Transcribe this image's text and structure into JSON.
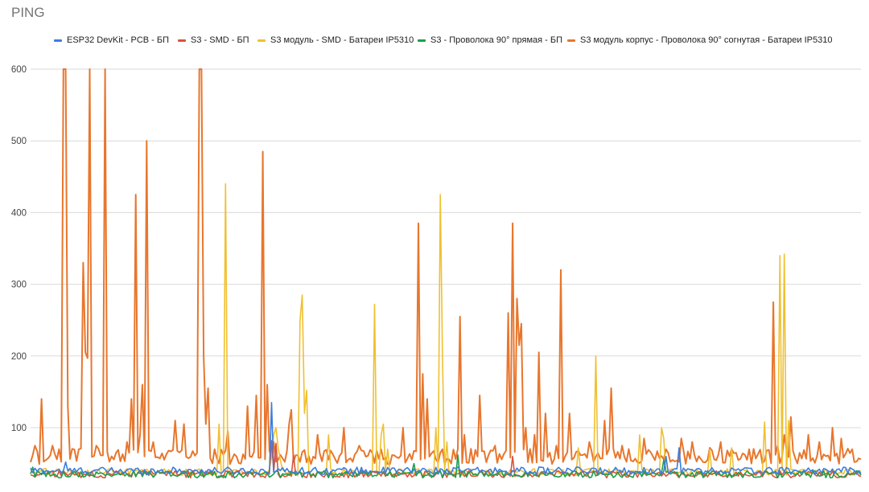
{
  "chart_data": {
    "type": "line",
    "title": "PING",
    "xlabel": "",
    "ylabel": "",
    "ylim": [
      25,
      600
    ],
    "yticks": [
      100,
      200,
      300,
      400,
      500,
      600
    ],
    "grid": true,
    "legend_position": "top",
    "x": "sample index 0..299 (no printed x-axis labels)",
    "series": [
      {
        "name": "ESP32 DevKit - PCB - БП",
        "color": "#3b7ddd",
        "baseline": 40,
        "peaks": [
          [
            16,
            52
          ],
          [
            110,
            135
          ],
          [
            290,
            60
          ],
          [
            296,
            72
          ]
        ]
      },
      {
        "name": "S3 - SMD - БП",
        "color": "#d9533b",
        "baseline": 35,
        "peaks": [
          [
            110,
            82
          ],
          [
            112,
            78
          ],
          [
            120,
            62
          ],
          [
            220,
            60
          ]
        ]
      },
      {
        "name": "S3 модуль - SMD - Батареи IP5310",
        "color": "#f0c030",
        "baseline": 38,
        "peaks": [
          [
            86,
            105
          ],
          [
            89,
            440
          ],
          [
            110,
            60
          ],
          [
            113,
            72
          ],
          [
            111,
            90
          ],
          [
            112,
            100
          ],
          [
            114,
            55
          ],
          [
            123,
            250
          ],
          [
            124,
            285
          ],
          [
            125,
            120
          ],
          [
            126,
            152
          ],
          [
            136,
            90
          ],
          [
            157,
            272
          ],
          [
            160,
            90
          ],
          [
            161,
            105
          ],
          [
            163,
            70
          ],
          [
            185,
            100
          ],
          [
            187,
            425
          ],
          [
            188,
            200
          ],
          [
            190,
            80
          ],
          [
            250,
            72
          ],
          [
            258,
            200
          ],
          [
            278,
            90
          ],
          [
            288,
            100
          ],
          [
            289,
            85
          ],
          [
            310,
            70
          ],
          [
            320,
            72
          ],
          [
            335,
            108
          ],
          [
            342,
            340
          ],
          [
            344,
            342
          ],
          [
            346,
            110
          ]
        ]
      },
      {
        "name": "S3 - Проволока 90° прямая - БП",
        "color": "#1e9e4c",
        "baseline": 35,
        "peaks": [
          [
            1,
            45
          ],
          [
            175,
            50
          ],
          [
            195,
            62
          ],
          [
            289,
            55
          ]
        ]
      },
      {
        "name": "S3 модуль корпус - Проволока 90° согнутая - Батареи IP5310",
        "color": "#e8762d",
        "baseline": 60,
        "peaks": [
          [
            2,
            75
          ],
          [
            5,
            140
          ],
          [
            10,
            75
          ],
          [
            15,
            600
          ],
          [
            16,
            600
          ],
          [
            17,
            130
          ],
          [
            22,
            70
          ],
          [
            24,
            330
          ],
          [
            25,
            205
          ],
          [
            26,
            197
          ],
          [
            27,
            600
          ],
          [
            30,
            75
          ],
          [
            34,
            600
          ],
          [
            37,
            60
          ],
          [
            44,
            80
          ],
          [
            46,
            140
          ],
          [
            48,
            425
          ],
          [
            50,
            90
          ],
          [
            51,
            160
          ],
          [
            52,
            60
          ],
          [
            53,
            500
          ],
          [
            56,
            80
          ],
          [
            66,
            110
          ],
          [
            70,
            105
          ],
          [
            77,
            600
          ],
          [
            78,
            600
          ],
          [
            79,
            200
          ],
          [
            80,
            105
          ],
          [
            81,
            155
          ],
          [
            90,
            95
          ],
          [
            99,
            130
          ],
          [
            103,
            145
          ],
          [
            106,
            485
          ],
          [
            108,
            160
          ],
          [
            111,
            80
          ],
          [
            118,
            105
          ],
          [
            119,
            125
          ],
          [
            131,
            90
          ],
          [
            143,
            100
          ],
          [
            150,
            75
          ],
          [
            160,
            70
          ],
          [
            170,
            100
          ],
          [
            177,
            385
          ],
          [
            179,
            175
          ],
          [
            181,
            140
          ],
          [
            188,
            70
          ],
          [
            196,
            255
          ],
          [
            198,
            90
          ],
          [
            205,
            145
          ],
          [
            212,
            75
          ],
          [
            218,
            260
          ],
          [
            220,
            385
          ],
          [
            222,
            280
          ],
          [
            223,
            215
          ],
          [
            224,
            245
          ],
          [
            226,
            100
          ],
          [
            230,
            90
          ],
          [
            232,
            205
          ],
          [
            235,
            120
          ],
          [
            240,
            75
          ],
          [
            242,
            320
          ],
          [
            246,
            120
          ],
          [
            255,
            80
          ],
          [
            262,
            110
          ],
          [
            265,
            155
          ],
          [
            270,
            75
          ],
          [
            280,
            85
          ],
          [
            290,
            70
          ],
          [
            297,
            85
          ],
          [
            302,
            80
          ],
          [
            310,
            72
          ],
          [
            315,
            80
          ],
          [
            320,
            70
          ],
          [
            339,
            275
          ],
          [
            341,
            75
          ],
          [
            344,
            90
          ],
          [
            347,
            115
          ],
          [
            355,
            90
          ],
          [
            360,
            80
          ],
          [
            366,
            100
          ],
          [
            370,
            85
          ],
          [
            375,
            70
          ]
        ]
      }
    ]
  }
}
